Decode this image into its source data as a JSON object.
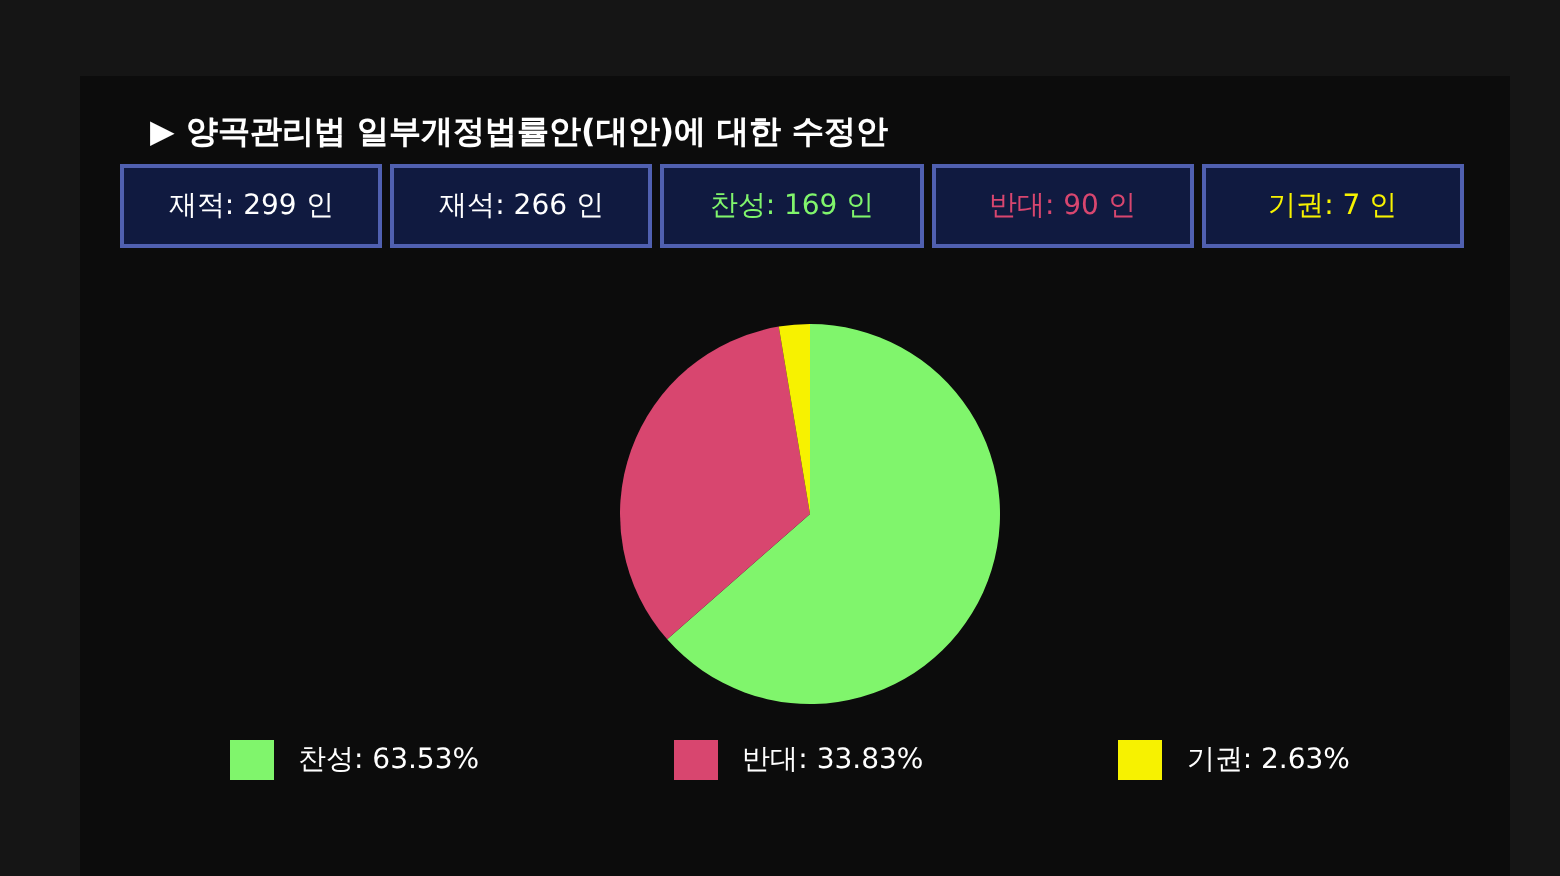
{
  "chart_data": {
    "type": "pie",
    "title": "▶ 양곡관리법 일부개정법률안(대안)에 대한 수정안",
    "annotations": [
      "재적: 299 인",
      "재석: 266 인",
      "찬성: 169 인",
      "반대: 90 인",
      "기권: 7 인"
    ],
    "categories": [
      "찬성: 63.53%",
      "반대: 33.83%",
      "기권: 2.63%"
    ],
    "values": [
      63.53,
      33.83,
      2.63
    ],
    "colors": [
      "#80f56c",
      "#d8466f",
      "#f7f200"
    ],
    "legend": "bottom"
  }
}
